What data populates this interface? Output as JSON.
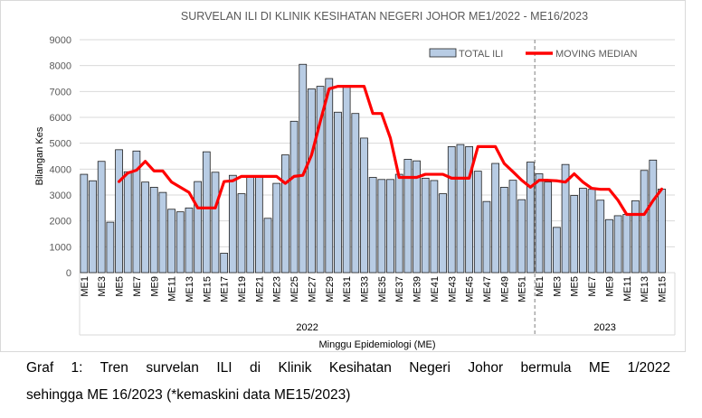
{
  "chart_data": {
    "type": "bar",
    "title": "SURVELAN ILI DI KLINIK KESIHATAN NEGERI JOHOR ME1/2022 - ME16/2023",
    "ylabel": "Bilangan Kes",
    "xlabel": "Minggu Epidemiologi (ME)",
    "ylim": [
      0,
      9000
    ],
    "yticks": [
      "0",
      "1000",
      "2000",
      "3000",
      "4000",
      "5000",
      "6000",
      "7000",
      "8000",
      "9000"
    ],
    "grid": true,
    "legend_position": "top-right",
    "categories": [
      "ME1",
      "ME2",
      "ME3",
      "ME4",
      "ME5",
      "ME6",
      "ME7",
      "ME8",
      "ME9",
      "ME10",
      "ME11",
      "ME12",
      "ME13",
      "ME14",
      "ME15",
      "ME16",
      "ME17",
      "ME18",
      "ME19",
      "ME20",
      "ME21",
      "ME22",
      "ME23",
      "ME24",
      "ME25",
      "ME26",
      "ME27",
      "ME28",
      "ME29",
      "ME30",
      "ME31",
      "ME32",
      "ME33",
      "ME34",
      "ME35",
      "ME36",
      "ME37",
      "ME38",
      "ME39",
      "ME40",
      "ME41",
      "ME42",
      "ME43",
      "ME44",
      "ME45",
      "ME46",
      "ME47",
      "ME48",
      "ME49",
      "ME50",
      "ME51",
      "ME52",
      "ME1",
      "ME2",
      "ME3",
      "ME4",
      "ME5",
      "ME6",
      "ME7",
      "ME8",
      "ME9",
      "ME10",
      "ME11",
      "ME12",
      "ME13",
      "ME14",
      "ME15",
      "ME16"
    ],
    "years": [
      {
        "label": "2022",
        "start": 0,
        "end": 51
      },
      {
        "label": "2023",
        "start": 52,
        "end": 67
      }
    ],
    "series": [
      {
        "name": "TOTAL ILI",
        "type": "bar",
        "color": "#b8cce4",
        "values": [
          3800,
          3550,
          4300,
          1950,
          4750,
          3900,
          4700,
          3500,
          3300,
          3100,
          2450,
          2350,
          2500,
          3520,
          4670,
          3880,
          750,
          3760,
          3050,
          3720,
          3700,
          2100,
          3450,
          4550,
          5850,
          8050,
          7100,
          7200,
          7500,
          6200,
          7200,
          6150,
          5200,
          3680,
          3600,
          3600,
          3800,
          4380,
          4320,
          3650,
          3560,
          3050,
          4870,
          4950,
          4870,
          3920,
          2750,
          4220,
          3300,
          3570,
          2820,
          4270,
          3820,
          3500,
          1750,
          4180,
          2980,
          3260,
          3220,
          2800,
          2050,
          2200,
          2250,
          2780,
          3950,
          4350,
          3230,
          0
        ]
      },
      {
        "name": "MOVING MEDIAN",
        "type": "line",
        "color": "#ff0000",
        "values": [
          null,
          null,
          null,
          null,
          3520,
          3850,
          3960,
          4300,
          3930,
          3930,
          3500,
          3300,
          3100,
          2500,
          2500,
          2500,
          3520,
          3550,
          3720,
          3720,
          3720,
          3720,
          3720,
          3450,
          3720,
          3760,
          4550,
          5850,
          7100,
          7200,
          7200,
          7200,
          7200,
          6150,
          6150,
          5200,
          3680,
          3680,
          3680,
          3800,
          3800,
          3800,
          3650,
          3650,
          3650,
          4870,
          4870,
          4870,
          4220,
          3900,
          3570,
          3300,
          3570,
          3570,
          3550,
          3500,
          3820,
          3500,
          3260,
          3220,
          3220,
          2800,
          2250,
          2250,
          2250,
          2780,
          3230,
          null
        ]
      }
    ]
  },
  "colors": {
    "bar_fill": "#b8cce4",
    "bar_stroke": "#1f1f1f",
    "line": "#ff0000",
    "grid": "#d9d9d9",
    "separator": "#7f7f7f",
    "text": "#595959"
  },
  "caption": {
    "line1": "Graf 1: Tren survelan ILI di Klinik Kesihatan Negeri Johor bermula ME 1/2022",
    "line2": "sehingga ME 16/2023 (*kemaskini data ME15/2023)"
  }
}
